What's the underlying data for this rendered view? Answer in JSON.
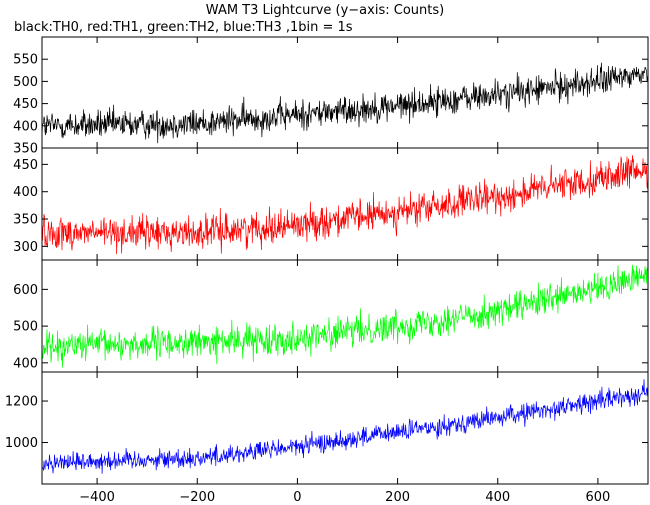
{
  "figure": {
    "title": "WAM T3 Lightcurve (y−axis: Counts)",
    "subtitle": "black:TH0, red:TH1, green:TH2, blue:TH3 ,1bin = 1s"
  },
  "chart_data": {
    "type": "line",
    "title": "WAM T3 Lightcurve (y−axis: Counts)",
    "subtitle": "black:TH0, red:TH1, green:TH2, blue:TH3 ,1bin = 1s",
    "xlabel": "",
    "ylabel": "Counts",
    "xlim": [
      -510,
      700
    ],
    "x_ticks": [
      -400,
      -200,
      0,
      200,
      400,
      600
    ],
    "x_tick_labels": [
      "−400",
      "−200",
      "0",
      "200",
      "400",
      "600"
    ],
    "bin_seconds": 1,
    "panels": [
      {
        "series": "TH0",
        "color": "#000000",
        "ylim": [
          350,
          600
        ],
        "y_ticks": [
          350,
          400,
          450,
          500,
          550
        ],
        "trend": [
          [
            -510,
            400
          ],
          [
            -200,
            405
          ],
          [
            0,
            425
          ],
          [
            200,
            445
          ],
          [
            400,
            470
          ],
          [
            600,
            500
          ],
          [
            700,
            520
          ]
        ],
        "noise_amplitude": 28
      },
      {
        "series": "TH1",
        "color": "#ff0000",
        "ylim": [
          275,
          480
        ],
        "y_ticks": [
          300,
          350,
          400,
          450
        ],
        "trend": [
          [
            -510,
            325
          ],
          [
            -200,
            325
          ],
          [
            0,
            340
          ],
          [
            200,
            362
          ],
          [
            400,
            390
          ],
          [
            600,
            425
          ],
          [
            700,
            440
          ]
        ],
        "noise_amplitude": 25
      },
      {
        "series": "TH2",
        "color": "#00ff00",
        "ylim": [
          375,
          680
        ],
        "y_ticks": [
          400,
          500,
          600
        ],
        "trend": [
          [
            -510,
            445
          ],
          [
            -200,
            455
          ],
          [
            0,
            468
          ],
          [
            200,
            500
          ],
          [
            400,
            540
          ],
          [
            600,
            600
          ],
          [
            700,
            640
          ]
        ],
        "noise_amplitude": 35
      },
      {
        "series": "TH3",
        "color": "#0000ff",
        "ylim": [
          800,
          1340
        ],
        "y_ticks": [
          1000,
          1200
        ],
        "trend": [
          [
            -510,
            905
          ],
          [
            -200,
            925
          ],
          [
            0,
            980
          ],
          [
            200,
            1050
          ],
          [
            400,
            1120
          ],
          [
            600,
            1200
          ],
          [
            700,
            1245
          ]
        ],
        "noise_amplitude": 40
      }
    ]
  }
}
